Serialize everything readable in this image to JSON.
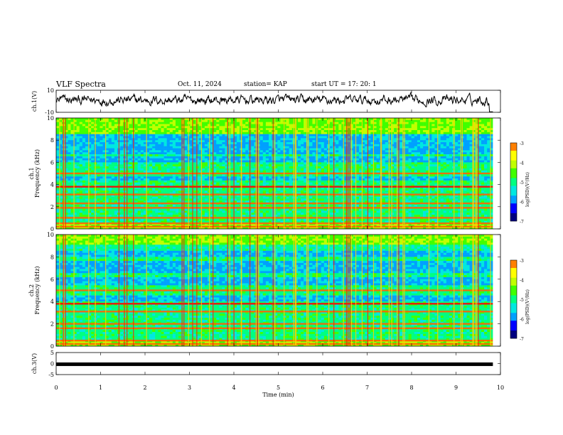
{
  "header": {
    "title": "VLF Spectra",
    "date": "Oct. 11, 2024",
    "station": "station= KAP",
    "start": "start  UT =   17: 20: 1"
  },
  "chart_data": {
    "type": "heatmap",
    "panels": [
      {
        "id": "ch1-waveform",
        "kind": "line",
        "ylabel": "ch.1(V)",
        "ylim": [
          -10,
          10
        ],
        "ytick_labels": [
          "10",
          "-10"
        ],
        "description_values": "continuous waveform oscillating roughly between -6 and +8 V, dropping near -10 V at t≈9.8 min"
      },
      {
        "id": "ch1-spectrogram",
        "kind": "heatmap",
        "ylabel": "ch.1\nFrequency (kHz)",
        "ylim": [
          0,
          10
        ],
        "ytick_labels": [
          "0",
          "2",
          "4",
          "6",
          "8",
          "10"
        ],
        "colorbar": {
          "label": "log(PSD)(V²/Hz)",
          "range": [
            -7,
            -3
          ],
          "tick_labels": [
            "-3",
            "-4",
            "-5",
            "-6",
            "-7"
          ]
        },
        "persistent_lines_khz": [
          0.2,
          0.5,
          1.0,
          1.9,
          2.3,
          3.1,
          3.8,
          5.0
        ],
        "quiet_bands_khz": [
          [
            4.3,
            4.8
          ],
          [
            6.0,
            6.6
          ],
          [
            6.8,
            8.5
          ]
        ]
      },
      {
        "id": "ch2-spectrogram",
        "kind": "heatmap",
        "ylabel": "ch.2\nFrequency (kHz)",
        "ylim": [
          0,
          10
        ],
        "ytick_labels": [
          "0",
          "2",
          "4",
          "6",
          "8",
          "10"
        ],
        "colorbar": {
          "label": "log(PSD)(V²/Hz)",
          "range": [
            -7,
            -3
          ],
          "tick_labels": [
            "-3",
            "-4",
            "-5",
            "-6",
            "-7"
          ]
        },
        "persistent_lines_khz": [
          0.2,
          0.5,
          1.6,
          2.0,
          3.1,
          3.8,
          5.0
        ],
        "quiet_bands_khz": [
          [
            4.0,
            4.6
          ],
          [
            5.4,
            6.2
          ],
          [
            6.6,
            7.6
          ],
          [
            8.0,
            9.0
          ]
        ]
      },
      {
        "id": "ch3-waveform",
        "kind": "line",
        "ylabel": "ch.3(V)",
        "ylim": [
          -5,
          5
        ],
        "ytick_labels": [
          "5",
          "0",
          "-5"
        ],
        "description_values": "thick flat trace near -0.5 V throughout"
      }
    ],
    "xlabel": "Time (min)",
    "xlim": [
      0,
      10
    ],
    "xtick_labels": [
      "0",
      "1",
      "2",
      "3",
      "4",
      "5",
      "6",
      "7",
      "8",
      "9",
      "10"
    ],
    "data_end_min": 9.83,
    "colormap": [
      "#000080",
      "#0000ff",
      "#00a0ff",
      "#00e8e0",
      "#00ff80",
      "#40ff00",
      "#c0ff00",
      "#ffff00",
      "#ff8000",
      "#ff0000",
      "#ffffff"
    ]
  }
}
